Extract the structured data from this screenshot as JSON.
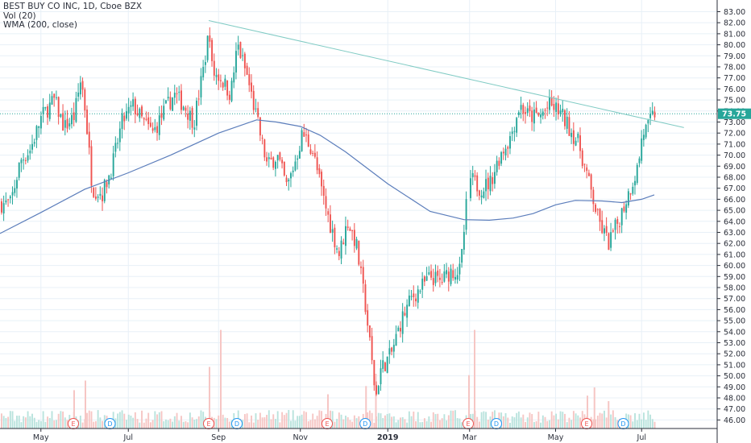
{
  "legend": {
    "symbol_line": "BEST BUY CO INC, 1D, Cboe BZX",
    "volume_line": "Vol (20)",
    "ma_line": "WMA (200, close)"
  },
  "colors": {
    "up": "#26a69a",
    "down": "#ef5350",
    "ma": "#5b7dbb",
    "trendline": "#80cbc4",
    "last_price_bg": "#26a69a",
    "grid": "#e8f0f7"
  },
  "chart_data": {
    "type": "candlestick",
    "title": "BEST BUY CO INC, 1D, Cboe BZX",
    "ylim": [
      45.5,
      83.5
    ],
    "y_ticks": [
      "46.00",
      "47.00",
      "48.00",
      "49.00",
      "50.00",
      "51.00",
      "52.00",
      "53.00",
      "54.00",
      "55.00",
      "56.00",
      "57.00",
      "58.00",
      "59.00",
      "60.00",
      "61.00",
      "62.00",
      "63.00",
      "64.00",
      "65.00",
      "66.00",
      "67.00",
      "68.00",
      "69.00",
      "70.00",
      "71.00",
      "72.00",
      "73.00",
      "74.00",
      "75.00",
      "76.00",
      "77.00",
      "78.00",
      "79.00",
      "80.00",
      "81.00",
      "82.00",
      "83.00"
    ],
    "x_ticks": [
      "May",
      "Jul",
      "Sep",
      "Nov",
      "2019",
      "Mar",
      "May",
      "Jul"
    ],
    "last_price": "73.75",
    "price_path": [
      [
        "2018-04-09",
        65.6
      ],
      [
        "2018-04-16",
        69.5
      ],
      [
        "2018-04-23",
        70.5
      ],
      [
        "2018-05-01",
        73.5
      ],
      [
        "2018-05-10",
        75.0
      ],
      [
        "2018-05-17",
        72.5
      ],
      [
        "2018-05-24",
        73.5
      ],
      [
        "2018-05-29",
        77.0
      ],
      [
        "2018-06-01",
        74.0
      ],
      [
        "2018-06-06",
        67.0
      ],
      [
        "2018-06-13",
        66.5
      ],
      [
        "2018-06-20",
        69.0
      ],
      [
        "2018-06-27",
        73.0
      ],
      [
        "2018-07-05",
        74.5
      ],
      [
        "2018-07-12",
        73.0
      ],
      [
        "2018-07-19",
        72.0
      ],
      [
        "2018-07-27",
        74.0
      ],
      [
        "2018-08-03",
        75.5
      ],
      [
        "2018-08-10",
        74.5
      ],
      [
        "2018-08-17",
        73.0
      ],
      [
        "2018-08-24",
        78.0
      ],
      [
        "2018-08-28",
        81.5
      ],
      [
        "2018-08-30",
        77.5
      ],
      [
        "2018-09-05",
        77.0
      ],
      [
        "2018-09-12",
        75.5
      ],
      [
        "2018-09-17",
        80.0
      ],
      [
        "2018-09-24",
        77.0
      ],
      [
        "2018-10-01",
        73.0
      ],
      [
        "2018-10-08",
        69.0
      ],
      [
        "2018-10-15",
        70.0
      ],
      [
        "2018-10-22",
        67.0
      ],
      [
        "2018-10-29",
        70.0
      ],
      [
        "2018-11-02",
        72.0
      ],
      [
        "2018-11-09",
        70.5
      ],
      [
        "2018-11-16",
        66.5
      ],
      [
        "2018-11-21",
        64.0
      ],
      [
        "2018-11-28",
        61.0
      ],
      [
        "2018-12-04",
        64.0
      ],
      [
        "2018-12-10",
        62.0
      ],
      [
        "2018-12-17",
        56.0
      ],
      [
        "2018-12-24",
        48.0
      ],
      [
        "2018-12-27",
        50.5
      ],
      [
        "2019-01-04",
        52.0
      ],
      [
        "2019-01-11",
        55.0
      ],
      [
        "2019-01-18",
        57.0
      ],
      [
        "2019-01-25",
        58.0
      ],
      [
        "2019-02-01",
        59.0
      ],
      [
        "2019-02-08",
        58.5
      ],
      [
        "2019-02-15",
        59.5
      ],
      [
        "2019-02-22",
        59.5
      ],
      [
        "2019-02-28",
        68.0
      ],
      [
        "2019-03-08",
        67.0
      ],
      [
        "2019-03-15",
        67.5
      ],
      [
        "2019-03-22",
        70.0
      ],
      [
        "2019-03-29",
        71.5
      ],
      [
        "2019-04-05",
        74.5
      ],
      [
        "2019-04-12",
        73.5
      ],
      [
        "2019-04-19",
        73.5
      ],
      [
        "2019-04-26",
        74.5
      ],
      [
        "2019-05-03",
        74.0
      ],
      [
        "2019-05-10",
        72.5
      ],
      [
        "2019-05-17",
        71.0
      ],
      [
        "2019-05-24",
        67.5
      ],
      [
        "2019-05-31",
        64.0
      ],
      [
        "2019-06-07",
        62.0
      ],
      [
        "2019-06-14",
        64.0
      ],
      [
        "2019-06-21",
        66.5
      ],
      [
        "2019-06-28",
        69.0
      ],
      [
        "2019-07-01",
        72.0
      ],
      [
        "2019-07-05",
        72.5
      ],
      [
        "2019-07-09",
        73.75
      ]
    ],
    "wma200": [
      [
        "2018-04-02",
        62.9
      ],
      [
        "2018-05-01",
        64.8
      ],
      [
        "2018-06-01",
        66.9
      ],
      [
        "2018-07-02",
        68.4
      ],
      [
        "2018-08-01",
        70.0
      ],
      [
        "2018-09-04",
        72.0
      ],
      [
        "2018-10-01",
        73.2
      ],
      [
        "2018-10-15",
        73.0
      ],
      [
        "2018-11-01",
        72.6
      ],
      [
        "2018-11-15",
        71.8
      ],
      [
        "2018-12-03",
        70.3
      ],
      [
        "2019-01-02",
        67.4
      ],
      [
        "2019-02-01",
        64.9
      ],
      [
        "2019-02-25",
        64.15
      ],
      [
        "2019-03-15",
        64.1
      ],
      [
        "2019-04-01",
        64.3
      ],
      [
        "2019-04-15",
        64.7
      ],
      [
        "2019-05-01",
        65.5
      ],
      [
        "2019-05-15",
        65.9
      ],
      [
        "2019-06-03",
        65.85
      ],
      [
        "2019-06-17",
        65.7
      ],
      [
        "2019-07-01",
        66.0
      ],
      [
        "2019-07-10",
        66.4
      ]
    ],
    "trendline": [
      [
        "2018-08-28",
        82.2
      ],
      [
        "2019-07-31",
        72.5
      ]
    ],
    "earnings_markers": [
      "2018-05-24",
      "2018-08-28",
      "2018-11-20",
      "2019-02-28",
      "2019-05-23"
    ],
    "dividend_markers": [
      "2018-06-19",
      "2018-09-17",
      "2018-12-17",
      "2019-03-20",
      "2019-06-18"
    ],
    "volume_spikes": [
      [
        "2018-05-24",
        0.28
      ],
      [
        "2018-06-01",
        0.35
      ],
      [
        "2018-08-28",
        0.45
      ],
      [
        "2018-09-05",
        0.72
      ],
      [
        "2018-11-20",
        0.25
      ],
      [
        "2018-12-17",
        0.31
      ],
      [
        "2018-12-24",
        0.4
      ],
      [
        "2019-02-28",
        0.39
      ],
      [
        "2019-03-04",
        0.72
      ],
      [
        "2019-05-23",
        0.24
      ],
      [
        "2019-05-28",
        0.3
      ],
      [
        "2019-06-07",
        0.2
      ]
    ]
  },
  "event_labels": {
    "earnings": "E",
    "dividend": "D"
  }
}
